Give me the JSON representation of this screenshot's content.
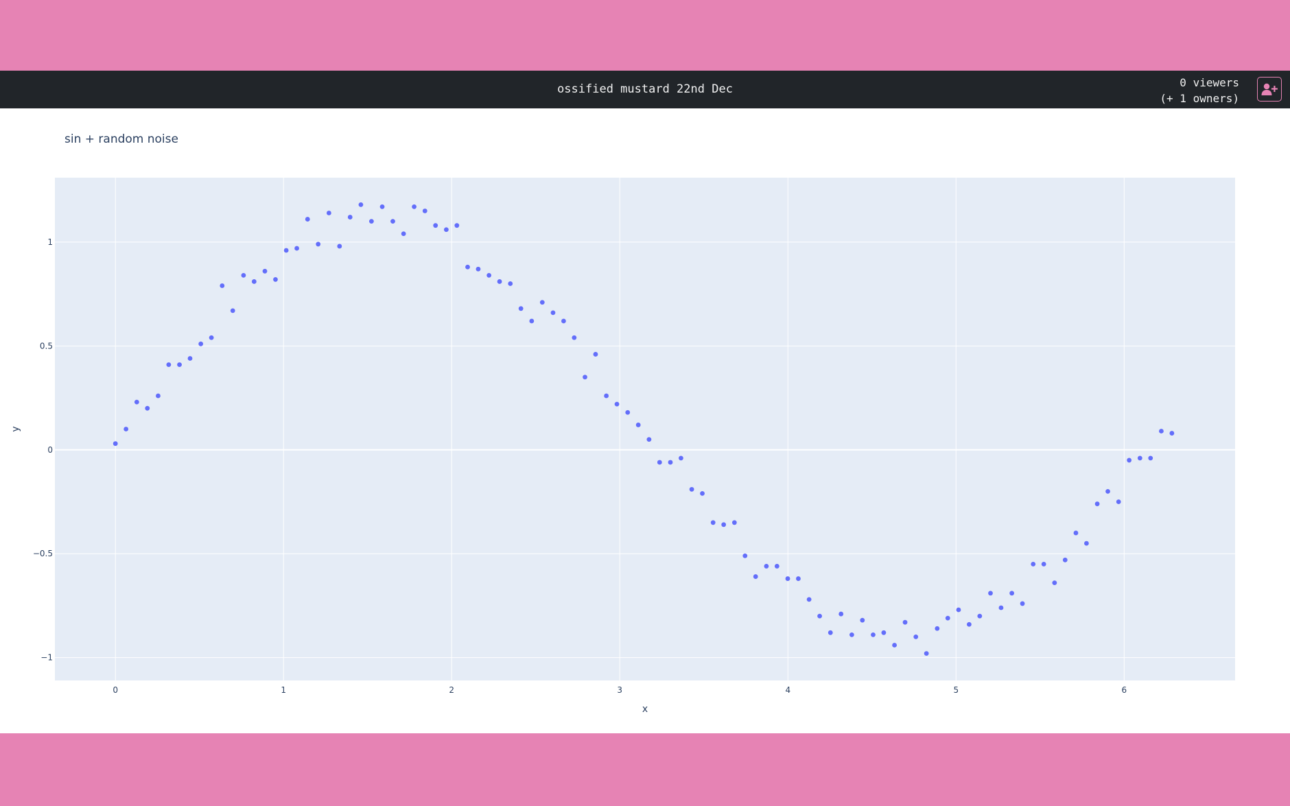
{
  "navbar": {
    "title": "ossified mustard 22nd Dec",
    "viewers_line": "0 viewers",
    "owners_line": "(+ 1 owners)",
    "add_user_icon": "user-plus-icon"
  },
  "colors": {
    "band": "#e683b4",
    "navbar": "#212529",
    "plot_bg": "#e5ecf6",
    "marker": "#636efa"
  },
  "chart_data": {
    "type": "scatter",
    "title": "sin + random noise",
    "xlabel": "x",
    "ylabel": "y",
    "xlim": [
      -0.36,
      6.66
    ],
    "ylim": [
      -1.11,
      1.31
    ],
    "xticks": [
      0,
      1,
      2,
      3,
      4,
      5,
      6
    ],
    "xtick_labels": [
      "0",
      "1",
      "2",
      "3",
      "4",
      "5",
      "6"
    ],
    "yticks": [
      -1,
      -0.5,
      0,
      0.5,
      1
    ],
    "ytick_labels": [
      "−1",
      "−0.5",
      "0",
      "0.5",
      "1"
    ],
    "grid": true,
    "series": [
      {
        "x": [
          0.0,
          0.063,
          0.127,
          0.19,
          0.254,
          0.317,
          0.381,
          0.444,
          0.508,
          0.571,
          0.635,
          0.698,
          0.762,
          0.825,
          0.889,
          0.952,
          1.016,
          1.079,
          1.143,
          1.206,
          1.27,
          1.333,
          1.396,
          1.46,
          1.523,
          1.587,
          1.65,
          1.714,
          1.777,
          1.841,
          1.904,
          1.968,
          2.031,
          2.095,
          2.158,
          2.222,
          2.285,
          2.349,
          2.412,
          2.476,
          2.539,
          2.603,
          2.666,
          2.729,
          2.793,
          2.856,
          2.92,
          2.983,
          3.047,
          3.11,
          3.174,
          3.237,
          3.301,
          3.364,
          3.428,
          3.491,
          3.555,
          3.618,
          3.682,
          3.745,
          3.808,
          3.872,
          3.935,
          3.999,
          4.062,
          4.126,
          4.189,
          4.253,
          4.316,
          4.38,
          4.443,
          4.507,
          4.57,
          4.634,
          4.697,
          4.761,
          4.824,
          4.888,
          4.951,
          5.015,
          5.078,
          5.141,
          5.205,
          5.268,
          5.332,
          5.395,
          5.459,
          5.522,
          5.586,
          5.649,
          5.713,
          5.776,
          5.84,
          5.903,
          5.967,
          6.03,
          6.094,
          6.157,
          6.221,
          6.284
        ],
        "y": [
          0.03,
          0.1,
          0.23,
          0.2,
          0.26,
          0.41,
          0.41,
          0.44,
          0.51,
          0.54,
          0.79,
          0.67,
          0.84,
          0.81,
          0.86,
          0.82,
          0.96,
          0.97,
          1.11,
          0.99,
          1.14,
          0.98,
          1.12,
          1.18,
          1.1,
          1.17,
          1.1,
          1.04,
          1.17,
          1.15,
          1.08,
          1.06,
          1.08,
          0.88,
          0.87,
          0.84,
          0.81,
          0.8,
          0.68,
          0.62,
          0.71,
          0.66,
          0.62,
          0.54,
          0.35,
          0.46,
          0.26,
          0.22,
          0.18,
          0.12,
          0.05,
          -0.06,
          -0.06,
          -0.04,
          -0.19,
          -0.21,
          -0.35,
          -0.36,
          -0.35,
          -0.51,
          -0.61,
          -0.56,
          -0.56,
          -0.62,
          -0.62,
          -0.72,
          -0.8,
          -0.88,
          -0.79,
          -0.89,
          -0.82,
          -0.89,
          -0.88,
          -0.94,
          -0.83,
          -0.9,
          -0.98,
          -0.86,
          -0.81,
          -0.77,
          -0.84,
          -0.8,
          -0.69,
          -0.76,
          -0.69,
          -0.74,
          -0.55,
          -0.55,
          -0.64,
          -0.53,
          -0.4,
          -0.45,
          -0.26,
          -0.2,
          -0.25,
          -0.05,
          -0.04,
          -0.04,
          0.09,
          0.08
        ]
      }
    ]
  }
}
